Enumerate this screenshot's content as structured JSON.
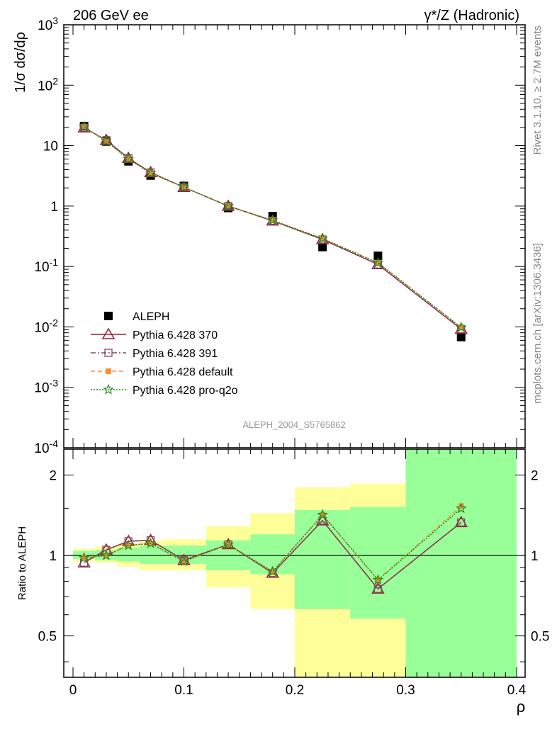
{
  "header": {
    "left": "206 GeV ee",
    "right": "γ*/Z (Hadronic)"
  },
  "side_text": {
    "rivet": "Rivet 3.1.10, ≥ 2.7M events",
    "mcplots": "mcplots.cern.ch [arXiv:1306.3436]"
  },
  "analysis_label": "ALEPH_2004_S5765862",
  "chart_data": [
    {
      "type": "line",
      "panel": "main",
      "ylabel": "1/σ dσ/dρ",
      "yscale": "log",
      "ylim": [
        0.0001,
        1000
      ],
      "xlim": [
        -0.01,
        0.4
      ],
      "y_ticks": [
        "10^-4",
        "10^-3",
        "10^-2",
        "10^-1",
        "1",
        "10",
        "10^2",
        "10^3"
      ],
      "x": [
        0.01,
        0.03,
        0.05,
        0.07,
        0.1,
        0.14,
        0.18,
        0.225,
        0.275,
        0.35
      ],
      "series": [
        {
          "name": "ALEPH",
          "color": "#000000",
          "marker": "square",
          "values": [
            21,
            11.7,
            5.5,
            3.2,
            2.15,
            0.93,
            0.68,
            0.21,
            0.15,
            0.0068
          ]
        },
        {
          "name": "Pythia 6.428 370",
          "color": "#9b1b30",
          "marker": "triangle",
          "values": [
            19.8,
            12.3,
            6.2,
            3.6,
            2.05,
            1.0,
            0.57,
            0.28,
            0.108,
            0.0092
          ]
        },
        {
          "name": "Pythia 6.428 391",
          "color": "#7b4a6a",
          "marker": "open-square",
          "values": [
            19.8,
            12.3,
            6.2,
            3.6,
            2.05,
            1.0,
            0.57,
            0.28,
            0.108,
            0.0092
          ]
        },
        {
          "name": "Pythia 6.428 default",
          "color": "#ff8c3a",
          "marker": "filled-square",
          "values": [
            20.5,
            11.8,
            6.0,
            3.5,
            2.05,
            1.0,
            0.58,
            0.29,
            0.115,
            0.0098
          ]
        },
        {
          "name": "Pythia 6.428 pro-q2o",
          "color": "#1a8a1a",
          "marker": "star",
          "values": [
            20.5,
            11.8,
            6.0,
            3.5,
            2.05,
            1.0,
            0.58,
            0.29,
            0.115,
            0.0098
          ]
        }
      ]
    },
    {
      "type": "line",
      "panel": "ratio",
      "ylabel": "Ratio to ALEPH",
      "xlabel": "ρ",
      "yscale": "log",
      "ylim": [
        0.35,
        2.5
      ],
      "y_ticks": [
        "0.5",
        "1",
        "2"
      ],
      "x_ticks": [
        "0",
        "0.1",
        "0.2",
        "0.3",
        "0.4"
      ],
      "bins": [
        [
          0,
          0.02
        ],
        [
          0.02,
          0.04
        ],
        [
          0.04,
          0.06
        ],
        [
          0.06,
          0.08
        ],
        [
          0.08,
          0.12
        ],
        [
          0.12,
          0.16
        ],
        [
          0.16,
          0.2
        ],
        [
          0.2,
          0.25
        ],
        [
          0.25,
          0.3
        ],
        [
          0.3,
          0.4
        ]
      ],
      "band_green": [
        [
          0.97,
          1.04
        ],
        [
          0.96,
          1.05
        ],
        [
          0.95,
          1.07
        ],
        [
          0.93,
          1.09
        ],
        [
          0.93,
          1.09
        ],
        [
          0.88,
          1.14
        ],
        [
          0.85,
          1.2
        ],
        [
          0.63,
          1.48
        ],
        [
          0.58,
          1.52
        ],
        [
          0.2,
          2.7
        ]
      ],
      "band_yellow": [
        [
          0.95,
          1.06
        ],
        [
          0.94,
          1.08
        ],
        [
          0.91,
          1.11
        ],
        [
          0.88,
          1.13
        ],
        [
          0.88,
          1.15
        ],
        [
          0.76,
          1.29
        ],
        [
          0.63,
          1.44
        ],
        [
          0.3,
          1.8
        ],
        [
          0.3,
          1.86
        ],
        [
          0.2,
          2.7
        ]
      ],
      "x": [
        0.01,
        0.03,
        0.05,
        0.07,
        0.1,
        0.14,
        0.18,
        0.225,
        0.275,
        0.35
      ],
      "series": [
        {
          "name": "Pythia 6.428 370",
          "color": "#9b1b30",
          "marker": "triangle",
          "values": [
            0.94,
            1.05,
            1.13,
            1.14,
            0.96,
            1.1,
            0.86,
            1.35,
            0.75,
            1.33
          ]
        },
        {
          "name": "Pythia 6.428 391",
          "color": "#7b4a6a",
          "marker": "open-square",
          "values": [
            0.94,
            1.05,
            1.13,
            1.14,
            0.96,
            1.1,
            0.86,
            1.35,
            0.75,
            1.33
          ]
        },
        {
          "name": "Pythia 6.428 default",
          "color": "#ff8c3a",
          "marker": "filled-square",
          "values": [
            0.98,
            1.0,
            1.09,
            1.11,
            0.95,
            1.1,
            0.87,
            1.42,
            0.81,
            1.53
          ]
        },
        {
          "name": "Pythia 6.428 pro-q2o",
          "color": "#1a8a1a",
          "marker": "star",
          "values": [
            0.98,
            1.0,
            1.09,
            1.11,
            0.95,
            1.1,
            0.87,
            1.42,
            0.81,
            1.5
          ]
        }
      ]
    }
  ]
}
